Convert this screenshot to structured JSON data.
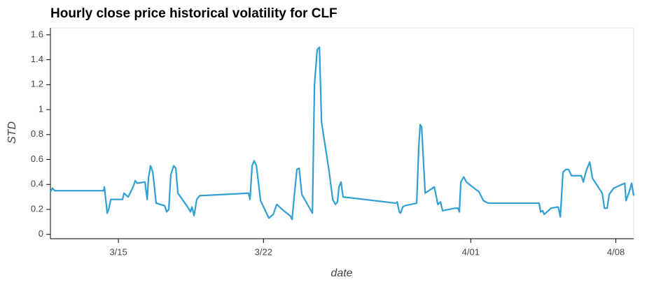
{
  "chart_data": {
    "type": "line",
    "title": "Hourly close price historical volatility for CLF",
    "x_label": "date",
    "y_label": "STD",
    "x": [
      11.72,
      11.82,
      11.93,
      14.29,
      14.32,
      14.39,
      14.46,
      14.53,
      14.63,
      15.2,
      15.27,
      15.47,
      15.71,
      15.81,
      15.91,
      16.28,
      16.39,
      16.45,
      16.55,
      16.66,
      16.82,
      17.23,
      17.33,
      17.43,
      17.53,
      17.67,
      17.77,
      17.87,
      18.34,
      18.48,
      18.55,
      18.65,
      18.78,
      18.92,
      21.28,
      21.35,
      21.45,
      21.55,
      21.66,
      21.86,
      22.26,
      22.47,
      22.64,
      22.97,
      23.28,
      23.38,
      23.48,
      23.61,
      23.72,
      23.85,
      24.36,
      24.46,
      24.59,
      24.7,
      24.8,
      25.17,
      25.34,
      25.47,
      25.57,
      25.64,
      25.74,
      25.84,
      28.38,
      28.45,
      28.55,
      28.61,
      28.72,
      28.82,
      29.39,
      29.49,
      29.56,
      29.63,
      29.8,
      30.24,
      30.34,
      30.41,
      30.54,
      30.64,
      31.25,
      31.39,
      31.45,
      31.52,
      31.66,
      31.79,
      31.93,
      32.4,
      32.61,
      32.84,
      35.3,
      35.37,
      35.47,
      35.54,
      35.88,
      36.22,
      36.32,
      36.45,
      36.59,
      36.72,
      36.86,
      37.33,
      37.43,
      37.57,
      37.74,
      37.87,
      38.34,
      38.45,
      38.58,
      38.68,
      38.89,
      39.29,
      39.43,
      39.49,
      39.66,
      39.76,
      39.86
    ],
    "series": [
      {
        "name": "STD",
        "color": "#2f9fd4",
        "values": [
          0.34,
          0.37,
          0.35,
          0.35,
          0.38,
          0.28,
          0.17,
          0.2,
          0.28,
          0.28,
          0.33,
          0.3,
          0.38,
          0.43,
          0.41,
          0.42,
          0.28,
          0.45,
          0.55,
          0.5,
          0.25,
          0.23,
          0.18,
          0.2,
          0.48,
          0.55,
          0.53,
          0.33,
          0.22,
          0.18,
          0.22,
          0.15,
          0.28,
          0.31,
          0.33,
          0.28,
          0.55,
          0.59,
          0.55,
          0.27,
          0.13,
          0.16,
          0.24,
          0.19,
          0.15,
          0.12,
          0.3,
          0.52,
          0.53,
          0.32,
          0.17,
          1.2,
          1.48,
          1.5,
          0.9,
          0.5,
          0.28,
          0.24,
          0.26,
          0.38,
          0.42,
          0.3,
          0.25,
          0.26,
          0.18,
          0.17,
          0.22,
          0.23,
          0.25,
          0.7,
          0.88,
          0.86,
          0.33,
          0.38,
          0.3,
          0.24,
          0.26,
          0.19,
          0.21,
          0.21,
          0.18,
          0.42,
          0.46,
          0.42,
          0.4,
          0.34,
          0.27,
          0.25,
          0.25,
          0.18,
          0.19,
          0.16,
          0.21,
          0.22,
          0.14,
          0.5,
          0.52,
          0.52,
          0.47,
          0.47,
          0.42,
          0.51,
          0.58,
          0.45,
          0.33,
          0.21,
          0.21,
          0.32,
          0.37,
          0.4,
          0.41,
          0.27,
          0.35,
          0.41,
          0.31
        ]
      }
    ],
    "xlim": [
      11.72,
      39.86
    ],
    "xticks": [
      {
        "value": 15,
        "label": "3/15"
      },
      {
        "value": 22,
        "label": "3/22"
      },
      {
        "value": 32,
        "label": "4/01"
      },
      {
        "value": 39,
        "label": "4/08"
      }
    ],
    "ylim": [
      -0.035,
      1.655
    ],
    "yticks": [
      0,
      0.2,
      0.4,
      0.6,
      0.8,
      1,
      1.2,
      1.4,
      1.6
    ],
    "grid": false
  }
}
